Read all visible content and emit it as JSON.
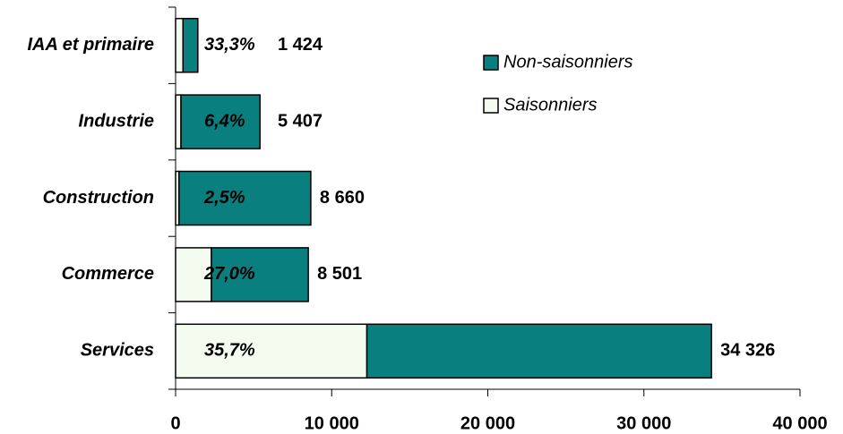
{
  "chart_data": {
    "type": "stacked-barh",
    "categories": [
      "IAA et primaire",
      "Industrie",
      "Construction",
      "Commerce",
      "Services"
    ],
    "series": [
      {
        "name": "Saisonniers",
        "color": "#f4fcf0",
        "values": [
          474,
          346,
          217,
          2295,
          12254
        ]
      },
      {
        "name": "Non-saisonniers",
        "color": "#0a7f7f",
        "values": [
          950,
          5061,
          8443,
          6206,
          22072
        ]
      }
    ],
    "shares": [
      33.3,
      6.4,
      2.5,
      27.0,
      35.7
    ],
    "share_labels": [
      "33,3%",
      "6,4%",
      "2,5%",
      "27,0%",
      "35,7%"
    ],
    "totals": [
      1424,
      5407,
      8660,
      8501,
      34326
    ],
    "total_labels": [
      "1 424",
      "5 407",
      "8 660",
      "8 501",
      "34 326"
    ],
    "xlim": [
      0,
      40000
    ],
    "xticks": [
      0,
      {
        "value": 10000,
        "label": "10 000"
      },
      {
        "value": 20000,
        "label": "20 000"
      },
      {
        "value": 30000,
        "label": "30 000"
      },
      {
        "value": 40000,
        "label": "40 000"
      }
    ],
    "legend": "upper right"
  }
}
